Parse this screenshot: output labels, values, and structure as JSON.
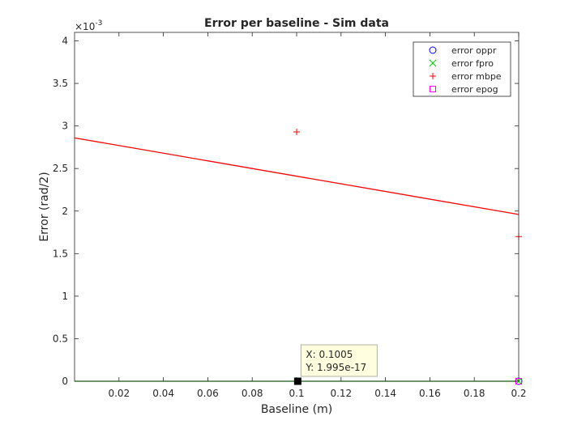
{
  "chart_data": {
    "type": "line",
    "title": "Error per baseline  - Sim data",
    "xlabel": "Baseline (m)",
    "ylabel": "Error (rad/2)",
    "y_exponent_label": "×10",
    "y_exponent_power": "-3",
    "xlim": [
      0,
      0.2
    ],
    "ylim": [
      0,
      0.0041
    ],
    "x_ticks": [
      0.02,
      0.04,
      0.06,
      0.08,
      0.1,
      0.12,
      0.14,
      0.16,
      0.18,
      0.2
    ],
    "x_tick_labels": [
      "0.02",
      "0.04",
      "0.06",
      "0.08",
      "0.1",
      "0.12",
      "0.14",
      "0.16",
      "0.18",
      "0.2"
    ],
    "y_ticks": [
      0,
      0.0005,
      0.001,
      0.0015,
      0.002,
      0.0025,
      0.003,
      0.0035,
      0.004
    ],
    "y_tick_labels": [
      "0",
      "0.5",
      "1",
      "1.5",
      "2",
      "2.5",
      "3",
      "3.5",
      "4"
    ],
    "grid": false,
    "legend_position": "top-right",
    "series": [
      {
        "name": "error oppr",
        "marker": "o",
        "color": "#0000ff",
        "x": [
          0.2
        ],
        "y": [
          0
        ]
      },
      {
        "name": "error fpro",
        "marker": "x",
        "color": "#00cc00",
        "x": [
          0.2
        ],
        "y": [
          0
        ]
      },
      {
        "name": "error mbpe",
        "marker": "+",
        "color": "#ff0000",
        "x": [
          0.1,
          0.2
        ],
        "y": [
          0.00293,
          0.0017
        ]
      },
      {
        "name": "error epog",
        "marker": "square",
        "color": "#ff00ff",
        "x": [
          0.2
        ],
        "y": [
          0
        ]
      }
    ],
    "lines": [
      {
        "color": "#ff0000",
        "x": [
          0,
          0.2
        ],
        "y": [
          0.00286,
          0.00196
        ]
      },
      {
        "color": "#00aa00",
        "x": [
          0,
          0.2
        ],
        "y": [
          0,
          0
        ]
      }
    ],
    "datatip": {
      "x": 0.1005,
      "y": 1.995e-17,
      "line1": "X: 0.1005",
      "line2": "Y: 1.995e-17"
    }
  }
}
